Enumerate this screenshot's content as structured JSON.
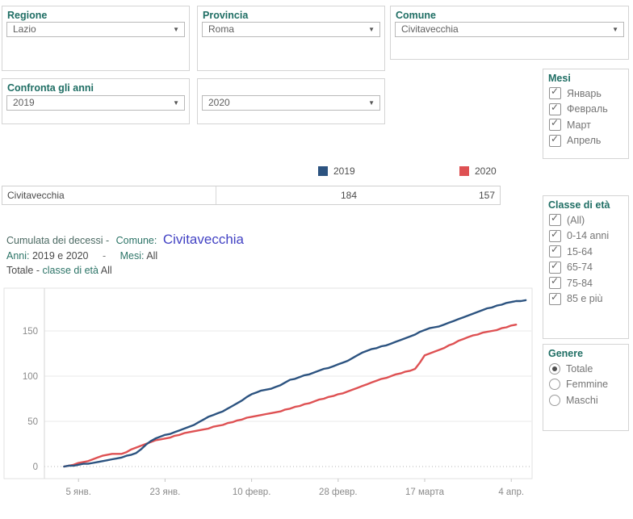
{
  "filters": {
    "regione": {
      "label": "Regione",
      "value": "Lazio"
    },
    "provincia": {
      "label": "Provincia",
      "value": "Roma"
    },
    "comune": {
      "label": "Comune",
      "value": "Civitavecchia"
    },
    "confronta": {
      "label": "Confronta gli anni",
      "value": "2019"
    },
    "anno2": {
      "value": "2020"
    }
  },
  "mesi": {
    "title": "Mesi",
    "items": [
      {
        "label": "Январь",
        "checked": true
      },
      {
        "label": "Февраль",
        "checked": true
      },
      {
        "label": "Март",
        "checked": true
      },
      {
        "label": "Апрель",
        "checked": true
      }
    ]
  },
  "classe": {
    "title": "Classe di età",
    "items": [
      {
        "label": "(All)",
        "checked": true
      },
      {
        "label": "0-14 anni",
        "checked": true
      },
      {
        "label": "15-64",
        "checked": true
      },
      {
        "label": "65-74",
        "checked": true
      },
      {
        "label": "75-84",
        "checked": true
      },
      {
        "label": "85 e più",
        "checked": true
      }
    ]
  },
  "genere": {
    "title": "Genere",
    "options": [
      {
        "label": "Totale",
        "selected": true
      },
      {
        "label": "Femmine",
        "selected": false
      },
      {
        "label": "Maschi",
        "selected": false
      }
    ]
  },
  "legend": {
    "items": [
      {
        "label": "2019",
        "color": "#2c5380"
      },
      {
        "label": "2020",
        "color": "#de5153"
      }
    ]
  },
  "summary_table": {
    "row": {
      "name": "Civitavecchia",
      "total_2019": "184",
      "total_2020": "157"
    }
  },
  "chart_title": {
    "pre": "Cumulata dei decessi -",
    "comune_label": "Comune:",
    "comune_value": "Civitavecchia",
    "anni_label": "Anni:",
    "anni_value": "2019 e 2020",
    "dash": "-",
    "mesi_label": "Mesi:",
    "mesi_value": "All",
    "tot_label": "Totale -",
    "tot_mid": "classe di età",
    "tot_value": "All"
  },
  "chart_data": {
    "type": "line",
    "title": "Cumulata dei decessi - Comune: Civitavecchia",
    "xlabel": "",
    "ylabel": "",
    "grid": true,
    "legend_position": "top",
    "ylim": [
      0,
      197
    ],
    "y_ticks": [
      0,
      50,
      100,
      150
    ],
    "x_ticks": [
      {
        "day": 4,
        "label": "5 янв."
      },
      {
        "day": 22,
        "label": "23 янв."
      },
      {
        "day": 40,
        "label": "10 февр."
      },
      {
        "day": 58,
        "label": "28 февр."
      },
      {
        "day": 76,
        "label": "17 марта"
      },
      {
        "day": 94,
        "label": "4 апр."
      }
    ],
    "series": [
      {
        "name": "2019",
        "color": "#2c5380",
        "final_total": 184,
        "points": [
          [
            1,
            0
          ],
          [
            2,
            1
          ],
          [
            3,
            1
          ],
          [
            4,
            2
          ],
          [
            5,
            3
          ],
          [
            6,
            3
          ],
          [
            7,
            4
          ],
          [
            8,
            5
          ],
          [
            9,
            6
          ],
          [
            10,
            7
          ],
          [
            11,
            8
          ],
          [
            12,
            9
          ],
          [
            13,
            10
          ],
          [
            14,
            12
          ],
          [
            15,
            13
          ],
          [
            16,
            15
          ],
          [
            17,
            19
          ],
          [
            18,
            24
          ],
          [
            19,
            28
          ],
          [
            20,
            31
          ],
          [
            21,
            33
          ],
          [
            22,
            35
          ],
          [
            23,
            36
          ],
          [
            24,
            38
          ],
          [
            25,
            40
          ],
          [
            26,
            42
          ],
          [
            27,
            44
          ],
          [
            28,
            46
          ],
          [
            29,
            49
          ],
          [
            30,
            52
          ],
          [
            31,
            55
          ],
          [
            32,
            57
          ],
          [
            33,
            59
          ],
          [
            34,
            61
          ],
          [
            35,
            64
          ],
          [
            36,
            67
          ],
          [
            37,
            70
          ],
          [
            38,
            73
          ],
          [
            39,
            77
          ],
          [
            40,
            80
          ],
          [
            41,
            82
          ],
          [
            42,
            84
          ],
          [
            43,
            85
          ],
          [
            44,
            86
          ],
          [
            45,
            88
          ],
          [
            46,
            90
          ],
          [
            47,
            93
          ],
          [
            48,
            96
          ],
          [
            49,
            97
          ],
          [
            50,
            99
          ],
          [
            51,
            101
          ],
          [
            52,
            102
          ],
          [
            53,
            104
          ],
          [
            54,
            106
          ],
          [
            55,
            108
          ],
          [
            56,
            109
          ],
          [
            57,
            111
          ],
          [
            58,
            113
          ],
          [
            59,
            115
          ],
          [
            60,
            117
          ],
          [
            61,
            120
          ],
          [
            62,
            123
          ],
          [
            63,
            126
          ],
          [
            64,
            128
          ],
          [
            65,
            130
          ],
          [
            66,
            131
          ],
          [
            67,
            133
          ],
          [
            68,
            134
          ],
          [
            69,
            136
          ],
          [
            70,
            138
          ],
          [
            71,
            140
          ],
          [
            72,
            142
          ],
          [
            73,
            144
          ],
          [
            74,
            146
          ],
          [
            75,
            149
          ],
          [
            76,
            151
          ],
          [
            77,
            153
          ],
          [
            78,
            154
          ],
          [
            79,
            155
          ],
          [
            80,
            157
          ],
          [
            81,
            159
          ],
          [
            82,
            161
          ],
          [
            83,
            163
          ],
          [
            84,
            165
          ],
          [
            85,
            167
          ],
          [
            86,
            169
          ],
          [
            87,
            171
          ],
          [
            88,
            173
          ],
          [
            89,
            175
          ],
          [
            90,
            176
          ],
          [
            91,
            178
          ],
          [
            92,
            179
          ],
          [
            93,
            181
          ],
          [
            94,
            182
          ],
          [
            95,
            183
          ],
          [
            96,
            183
          ],
          [
            97,
            184
          ]
        ]
      },
      {
        "name": "2020",
        "color": "#de5153",
        "final_total": 157,
        "points": [
          [
            1,
            0
          ],
          [
            2,
            1
          ],
          [
            3,
            2
          ],
          [
            4,
            4
          ],
          [
            5,
            5
          ],
          [
            6,
            6
          ],
          [
            7,
            8
          ],
          [
            8,
            10
          ],
          [
            9,
            12
          ],
          [
            10,
            13
          ],
          [
            11,
            14
          ],
          [
            12,
            14
          ],
          [
            13,
            14
          ],
          [
            14,
            16
          ],
          [
            15,
            19
          ],
          [
            16,
            21
          ],
          [
            17,
            23
          ],
          [
            18,
            25
          ],
          [
            19,
            27
          ],
          [
            20,
            29
          ],
          [
            21,
            30
          ],
          [
            22,
            31
          ],
          [
            23,
            32
          ],
          [
            24,
            34
          ],
          [
            25,
            35
          ],
          [
            26,
            37
          ],
          [
            27,
            38
          ],
          [
            28,
            39
          ],
          [
            29,
            40
          ],
          [
            30,
            41
          ],
          [
            31,
            42
          ],
          [
            32,
            44
          ],
          [
            33,
            45
          ],
          [
            34,
            46
          ],
          [
            35,
            48
          ],
          [
            36,
            49
          ],
          [
            37,
            51
          ],
          [
            38,
            52
          ],
          [
            39,
            54
          ],
          [
            40,
            55
          ],
          [
            41,
            56
          ],
          [
            42,
            57
          ],
          [
            43,
            58
          ],
          [
            44,
            59
          ],
          [
            45,
            60
          ],
          [
            46,
            61
          ],
          [
            47,
            63
          ],
          [
            48,
            64
          ],
          [
            49,
            66
          ],
          [
            50,
            67
          ],
          [
            51,
            69
          ],
          [
            52,
            70
          ],
          [
            53,
            72
          ],
          [
            54,
            74
          ],
          [
            55,
            75
          ],
          [
            56,
            77
          ],
          [
            57,
            78
          ],
          [
            58,
            80
          ],
          [
            59,
            81
          ],
          [
            60,
            83
          ],
          [
            61,
            85
          ],
          [
            62,
            87
          ],
          [
            63,
            89
          ],
          [
            64,
            91
          ],
          [
            65,
            93
          ],
          [
            66,
            95
          ],
          [
            67,
            97
          ],
          [
            68,
            98
          ],
          [
            69,
            100
          ],
          [
            70,
            102
          ],
          [
            71,
            103
          ],
          [
            72,
            105
          ],
          [
            73,
            106
          ],
          [
            74,
            108
          ],
          [
            75,
            115
          ],
          [
            76,
            123
          ],
          [
            77,
            125
          ],
          [
            78,
            127
          ],
          [
            79,
            129
          ],
          [
            80,
            131
          ],
          [
            81,
            134
          ],
          [
            82,
            136
          ],
          [
            83,
            139
          ],
          [
            84,
            141
          ],
          [
            85,
            143
          ],
          [
            86,
            145
          ],
          [
            87,
            146
          ],
          [
            88,
            148
          ],
          [
            89,
            149
          ],
          [
            90,
            150
          ],
          [
            91,
            151
          ],
          [
            92,
            153
          ],
          [
            93,
            154
          ],
          [
            94,
            156
          ],
          [
            95,
            157
          ]
        ]
      }
    ]
  }
}
